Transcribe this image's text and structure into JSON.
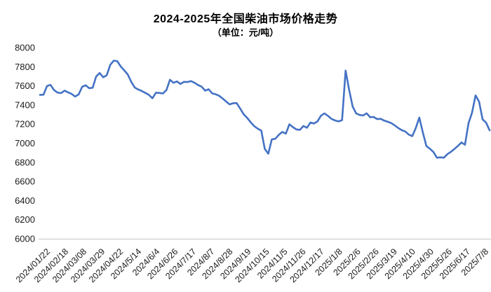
{
  "chart": {
    "title": "2024-2025年全国柴油市场价格走势",
    "subtitle": "（单位：元/吨）",
    "line_color": "#4472C4",
    "axis_color": "#d6d6d6",
    "label_color": "#1a1a1a"
  },
  "chart_data": {
    "type": "line",
    "title": "2024-2025年全国柴油市场价格走势",
    "subtitle": "（单位：元/吨）",
    "unit": "元/吨",
    "xlabel": "",
    "ylabel": "",
    "ylim": [
      6000,
      8000
    ],
    "y_ticks": [
      8000,
      7800,
      7600,
      7400,
      7200,
      7000,
      6800,
      6600,
      6400,
      6200,
      6000
    ],
    "grid": false,
    "legend": "none",
    "x_labels": [
      "2024/01/22",
      "2024/02/18",
      "2024/03/08",
      "2024/03/29",
      "2024/04/22",
      "2024/5/14",
      "2024/6/4",
      "2024/6/26",
      "2024/7/17",
      "2024/8/7",
      "2024/8/28",
      "2024/9/19",
      "2024/10/15",
      "2024/11/5",
      "2024/11/26",
      "2024/12/17",
      "2025/1/8",
      "2025/2/6",
      "2025/2/26",
      "2025/3/19",
      "2025/4/10",
      "2025/4/30",
      "2025/5/26",
      "2025/6/17",
      "2025/7/8"
    ],
    "series": [
      {
        "name": "柴油市场价格",
        "values": [
          7505,
          7508,
          7598,
          7610,
          7556,
          7530,
          7524,
          7550,
          7532,
          7516,
          7488,
          7510,
          7590,
          7606,
          7576,
          7580,
          7698,
          7734,
          7690,
          7710,
          7820,
          7864,
          7858,
          7802,
          7762,
          7718,
          7640,
          7582,
          7562,
          7546,
          7526,
          7506,
          7470,
          7528,
          7526,
          7520,
          7556,
          7664,
          7632,
          7646,
          7620,
          7642,
          7640,
          7650,
          7632,
          7608,
          7592,
          7550,
          7564,
          7522,
          7512,
          7496,
          7468,
          7436,
          7406,
          7418,
          7420,
          7362,
          7302,
          7264,
          7218,
          7178,
          7152,
          7132,
          6940,
          6890,
          7040,
          7046,
          7088,
          7118,
          7100,
          7198,
          7168,
          7144,
          7140,
          7180,
          7162,
          7216,
          7206,
          7228,
          7288,
          7312,
          7286,
          7254,
          7238,
          7228,
          7242,
          7760,
          7560,
          7385,
          7312,
          7295,
          7290,
          7312,
          7272,
          7275,
          7252,
          7255,
          7236,
          7224,
          7210,
          7186,
          7158,
          7136,
          7122,
          7090,
          7074,
          7160,
          7268,
          7110,
          6970,
          6942,
          6908,
          6848,
          6852,
          6848,
          6886,
          6910,
          6940,
          6972,
          7008,
          6984,
          7210,
          7320,
          7500,
          7435,
          7250,
          7215,
          7135
        ]
      }
    ]
  }
}
